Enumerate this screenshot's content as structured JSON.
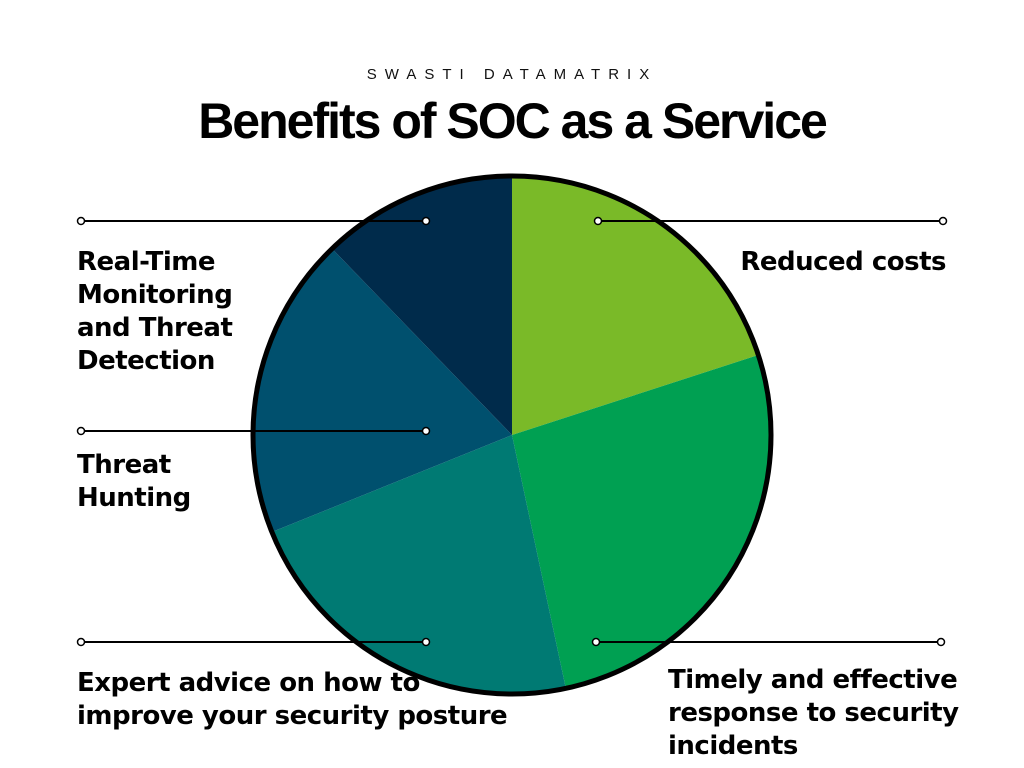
{
  "header": {
    "brand": "SWASTI DATAMATRIX",
    "title": "Benefits of SOC as a Service"
  },
  "diagram": {
    "slices": [
      {
        "id": "reduced-costs",
        "label": "Reduced costs",
        "color": "#7aba28",
        "start_deg": 0,
        "end_deg": 72
      },
      {
        "id": "timely-response",
        "label": "Timely and effective response to security incidents",
        "color": "#00a052",
        "start_deg": 72,
        "end_deg": 168
      },
      {
        "id": "expert-advice",
        "label": "Expert advice on how to improve your security posture",
        "color": "#007a73",
        "start_deg": 168,
        "end_deg": 248
      },
      {
        "id": "threat-hunting",
        "label": "Threat Hunting",
        "color": "#00506e",
        "start_deg": 248,
        "end_deg": 316
      },
      {
        "id": "real-time-monitoring",
        "label": "Real-Time Monitoring and Threat Detection",
        "color": "#002b4b",
        "start_deg": 316,
        "end_deg": 360
      }
    ],
    "outline_color": "#000000"
  },
  "labels": {
    "realtime": [
      "Real-Time",
      "Monitoring",
      "and Threat",
      "Detection"
    ],
    "hunting": [
      "Threat",
      "Hunting"
    ],
    "expert": [
      "Expert advice on how to",
      "improve your security posture"
    ],
    "reduced": [
      "Reduced costs"
    ],
    "timely": [
      "Timely and effective",
      "response to security",
      "incidents"
    ]
  }
}
